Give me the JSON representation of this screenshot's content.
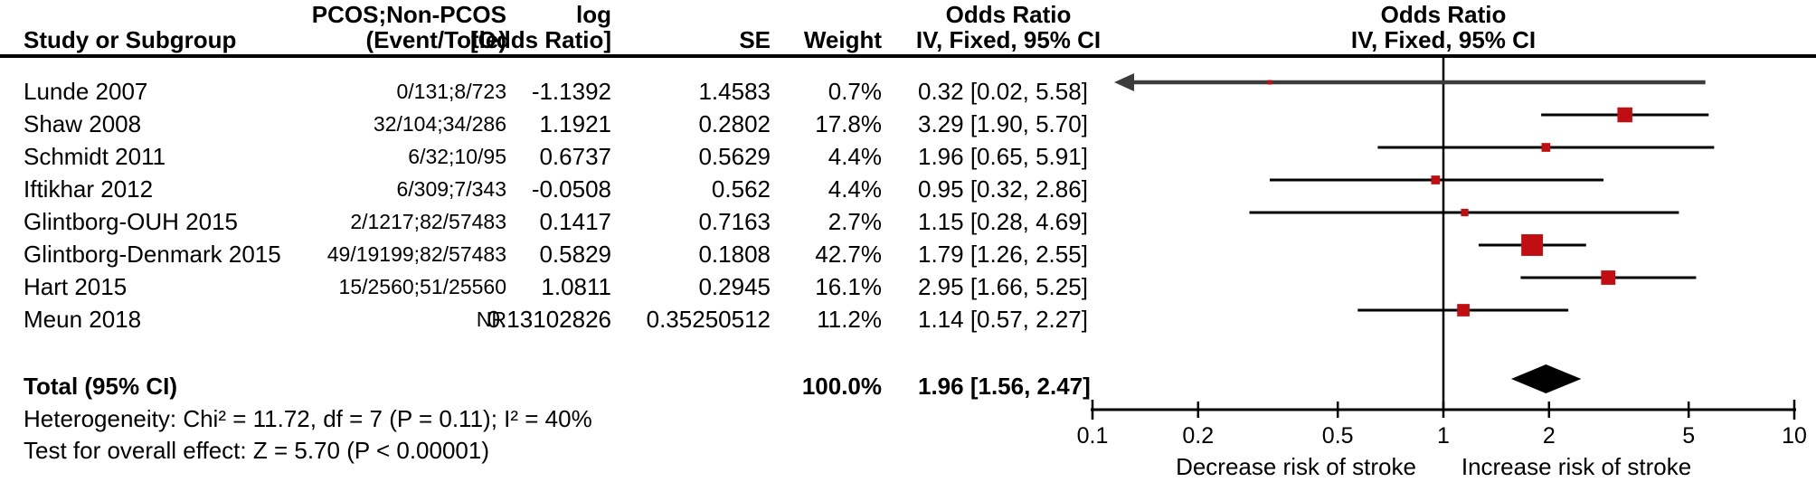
{
  "header": {
    "study": "Study or Subgroup",
    "events_line1": "PCOS;Non-PCOS",
    "events_line2": "(Event/Totle)",
    "log_line1": "log",
    "log_line2": "[Odds Ratio]",
    "se": "SE",
    "weight": "Weight",
    "or_line1": "Odds Ratio",
    "or_line2": "IV, Fixed, 95% CI",
    "plot_line1": "Odds Ratio",
    "plot_line2": "IV, Fixed, 95% CI"
  },
  "footer": {
    "heterogeneity": "Heterogeneity: Chi² = 11.72, df = 7 (P = 0.11); I² = 40%",
    "overall": "Test for overall effect: Z = 5.70 (P < 0.00001)"
  },
  "colors": {
    "marker": "#C00E12",
    "ci_line": "#000000",
    "arrow": "#3C3C3C",
    "diamond": "#000000",
    "axis": "#000000"
  },
  "chart_data": {
    "type": "forest",
    "x_scale": "log10",
    "x_range": [
      0.1,
      10
    ],
    "x_ticks": [
      0.1,
      0.2,
      0.5,
      1,
      2,
      5,
      10
    ],
    "x_tick_labels": [
      "0.1",
      "0.2",
      "0.5",
      "1",
      "2",
      "5",
      "10"
    ],
    "direction_labels": {
      "decrease": "Decrease risk of stroke",
      "increase": "Increase risk of stroke"
    },
    "studies": [
      {
        "name": "Lunde 2007",
        "events": "0/131;8/723",
        "log_or": "-1.1392",
        "se": "1.4583",
        "weight": "0.7%",
        "weight_pct": 0.7,
        "or": 0.32,
        "ci_low": 0.02,
        "ci_high": 5.58,
        "or_ci_text": "0.32 [0.02, 5.58]",
        "ci_low_offscale": true
      },
      {
        "name": "Shaw 2008",
        "events": "32/104;34/286",
        "log_or": "1.1921",
        "se": "0.2802",
        "weight": "17.8%",
        "weight_pct": 17.8,
        "or": 3.29,
        "ci_low": 1.9,
        "ci_high": 5.7,
        "or_ci_text": "3.29 [1.90, 5.70]",
        "ci_low_offscale": false
      },
      {
        "name": "Schmidt 2011",
        "events": "6/32;10/95",
        "log_or": "0.6737",
        "se": "0.5629",
        "weight": "4.4%",
        "weight_pct": 4.4,
        "or": 1.96,
        "ci_low": 0.65,
        "ci_high": 5.91,
        "or_ci_text": "1.96 [0.65, 5.91]",
        "ci_low_offscale": false
      },
      {
        "name": "Iftikhar 2012",
        "events": "6/309;7/343",
        "log_or": "-0.0508",
        "se": "0.562",
        "weight": "4.4%",
        "weight_pct": 4.4,
        "or": 0.95,
        "ci_low": 0.32,
        "ci_high": 2.86,
        "or_ci_text": "0.95 [0.32, 2.86]",
        "ci_low_offscale": false
      },
      {
        "name": "Glintborg-OUH 2015",
        "events": "2/1217;82/57483",
        "log_or": "0.1417",
        "se": "0.7163",
        "weight": "2.7%",
        "weight_pct": 2.7,
        "or": 1.15,
        "ci_low": 0.28,
        "ci_high": 4.69,
        "or_ci_text": "1.15 [0.28, 4.69]",
        "ci_low_offscale": false
      },
      {
        "name": "Glintborg-Denmark 2015",
        "events": "49/19199;82/57483",
        "log_or": "0.5829",
        "se": "0.1808",
        "weight": "42.7%",
        "weight_pct": 42.7,
        "or": 1.79,
        "ci_low": 1.26,
        "ci_high": 2.55,
        "or_ci_text": "1.79 [1.26, 2.55]",
        "ci_low_offscale": false
      },
      {
        "name": "Hart 2015",
        "events": "15/2560;51/25560",
        "log_or": "1.0811",
        "se": "0.2945",
        "weight": "16.1%",
        "weight_pct": 16.1,
        "or": 2.95,
        "ci_low": 1.66,
        "ci_high": 5.25,
        "or_ci_text": "2.95 [1.66, 5.25]",
        "ci_low_offscale": false
      },
      {
        "name": "Meun 2018",
        "events": "NR",
        "log_or": "0.13102826",
        "se": "0.35250512",
        "weight": "11.2%",
        "weight_pct": 11.2,
        "or": 1.14,
        "ci_low": 0.57,
        "ci_high": 2.27,
        "or_ci_text": "1.14 [0.57, 2.27]",
        "ci_low_offscale": false
      }
    ],
    "total": {
      "name": "Total (95% CI)",
      "weight": "100.0%",
      "or": 1.96,
      "ci_low": 1.56,
      "ci_high": 2.47,
      "or_ci_text": "1.96 [1.56, 2.47]"
    }
  }
}
